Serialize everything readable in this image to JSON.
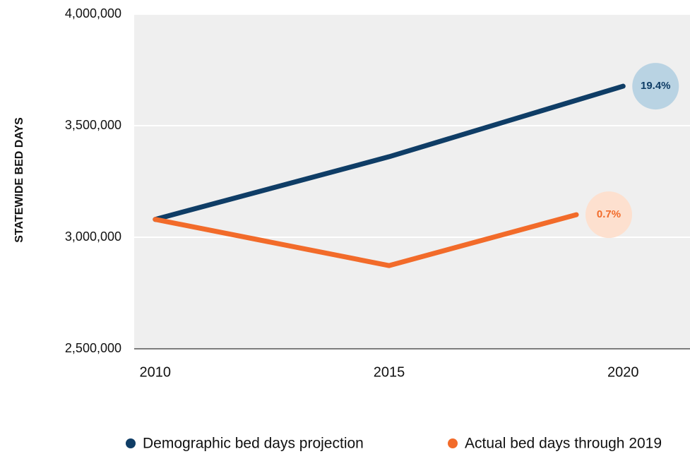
{
  "chart_data": {
    "type": "line",
    "y_label": "STATEWIDE BED DAYS",
    "series": [
      {
        "name": "Demographic bed days projection",
        "color": "#0f3d66",
        "x": [
          2010,
          2015,
          2020
        ],
        "values": [
          3080000,
          3361000,
          3677000
        ]
      },
      {
        "name": "Actual bed days through 2019",
        "color": "#f26b2a",
        "x": [
          2010,
          2015,
          2019
        ],
        "values": [
          3080000,
          2873000,
          3101000
        ]
      }
    ],
    "annotations": [
      {
        "text": "19.4%",
        "series": 0,
        "fill": "#b9d3e3"
      },
      {
        "text": "0.7%",
        "series": 1,
        "fill": "#fde0cf"
      }
    ],
    "xlim": [
      2009.55,
      2021.43
    ],
    "xticks": [
      2010,
      2015,
      2020
    ],
    "ylim": [
      2500000,
      4000000
    ],
    "yticks": [
      {
        "value": 2500000,
        "label": "2,500,000"
      },
      {
        "value": 3000000,
        "label": "3,000,000"
      },
      {
        "value": 3500000,
        "label": "3,500,000"
      },
      {
        "value": 4000000,
        "label": "4,000,000"
      }
    ],
    "grid": true,
    "legend": "bottom"
  }
}
